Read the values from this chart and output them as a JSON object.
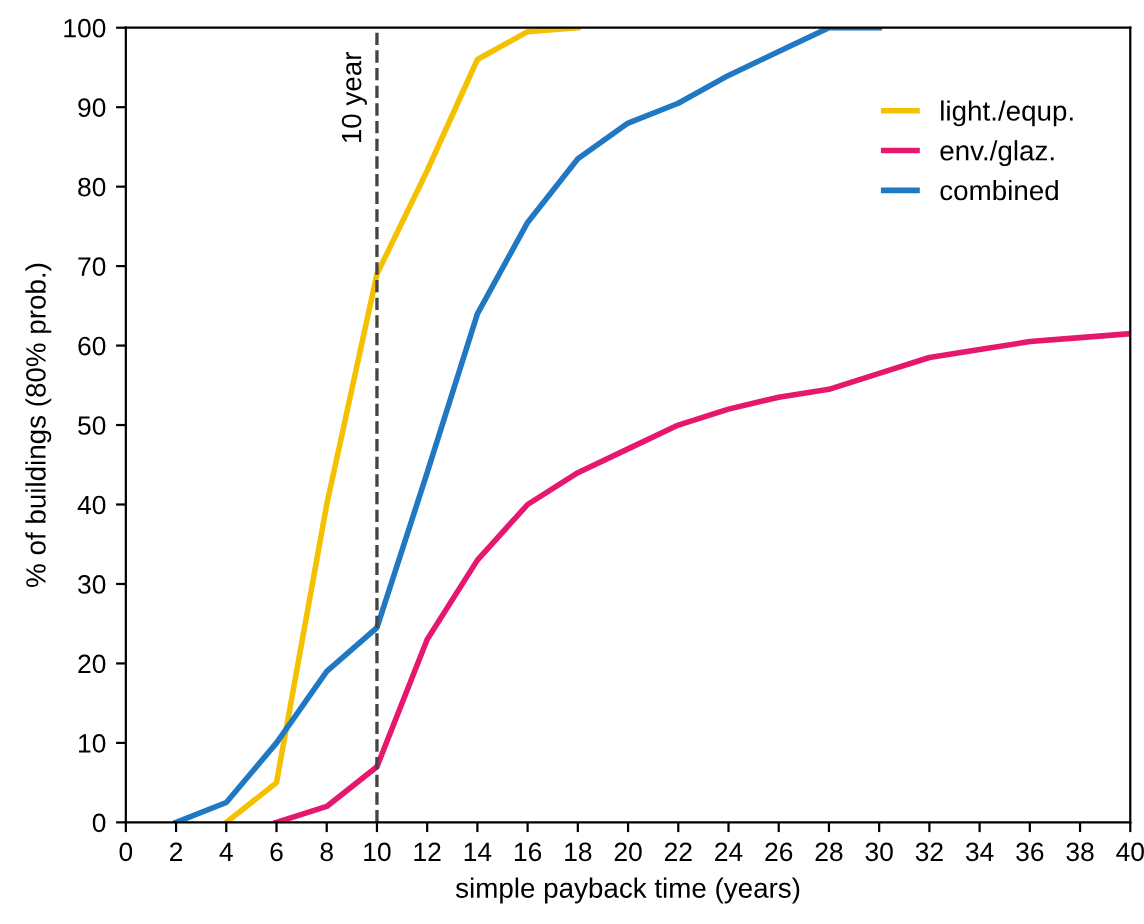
{
  "chart_data": {
    "type": "line",
    "xlabel": "simple payback time (years)",
    "ylabel": "% of buildings (80% prob.)",
    "xlim": [
      0,
      40
    ],
    "xticks": [
      0,
      2,
      4,
      6,
      8,
      10,
      12,
      14,
      16,
      18,
      20,
      22,
      24,
      26,
      28,
      30,
      32,
      34,
      36,
      38,
      40
    ],
    "ylim": [
      0,
      100
    ],
    "yticks": [
      0,
      10,
      20,
      30,
      40,
      50,
      60,
      70,
      80,
      90,
      100
    ],
    "grid": false,
    "legend": "top right",
    "marker": "none",
    "line_style": "solid",
    "ref_lines": [
      {
        "axis": "x",
        "value": 10,
        "label": "10 year",
        "color": "#444444",
        "line_style": "dashed"
      }
    ],
    "series": [
      {
        "name": "light./equp.",
        "color": "#f5c000",
        "x": [
          4,
          6,
          8,
          10,
          12,
          14,
          16,
          18
        ],
        "values": [
          0,
          5,
          40,
          69,
          82,
          96,
          99.5,
          100
        ]
      },
      {
        "name": "env./glaz.",
        "color": "#e6186e",
        "x": [
          6,
          8,
          10,
          12,
          14,
          16,
          18,
          20,
          22,
          24,
          26,
          28,
          30,
          32,
          34,
          36,
          38,
          40
        ],
        "values": [
          0,
          2,
          7,
          23,
          33,
          40,
          44,
          47,
          50,
          52,
          53.5,
          54.5,
          56.5,
          58.5,
          59.5,
          60.5,
          61,
          61.5
        ]
      },
      {
        "name": "combined",
        "color": "#1f78c1",
        "x": [
          2,
          4,
          6,
          8,
          10,
          12,
          14,
          16,
          18,
          20,
          22,
          24,
          26,
          28,
          30
        ],
        "values": [
          0,
          2.5,
          10,
          19,
          24.5,
          44,
          64,
          75.5,
          83.5,
          88,
          90.5,
          94,
          97,
          100,
          100
        ]
      }
    ]
  }
}
